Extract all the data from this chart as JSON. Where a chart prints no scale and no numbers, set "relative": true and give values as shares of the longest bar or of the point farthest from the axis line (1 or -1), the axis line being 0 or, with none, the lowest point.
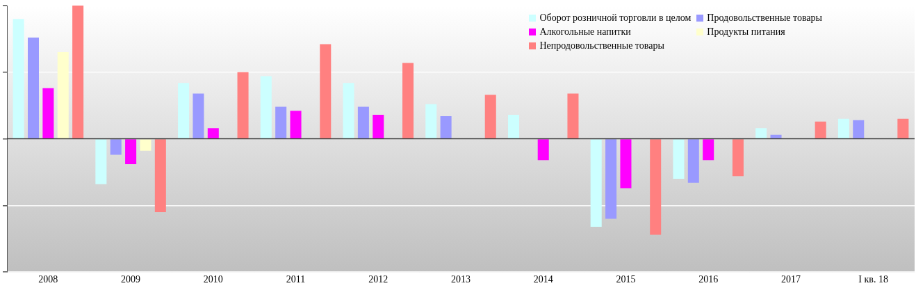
{
  "chart_data": {
    "type": "bar",
    "relative": true,
    "grid": "y",
    "legend": "top right",
    "categories": [
      "2008",
      "2009",
      "2010",
      "2011",
      "2012",
      "2013",
      "2014",
      "2015",
      "2016",
      "2017",
      "I кв. 18"
    ],
    "series": [
      {
        "name": "Оборот розничной торговли в целом",
        "color": "#ccffff",
        "values": [
          0.9,
          -0.34,
          0.42,
          0.47,
          0.42,
          0.26,
          0.18,
          -0.66,
          -0.3,
          0.08,
          0.15
        ]
      },
      {
        "name": "Продовольственные товары",
        "color": "#9999ff",
        "values": [
          0.76,
          -0.12,
          0.34,
          0.24,
          0.24,
          0.17,
          null,
          -0.6,
          -0.33,
          0.03,
          0.14
        ]
      },
      {
        "name": "Алкогольные напитки",
        "color": "#ff00ff",
        "values": [
          0.38,
          -0.19,
          0.08,
          0.21,
          0.18,
          null,
          -0.16,
          -0.37,
          -0.16,
          null,
          null
        ]
      },
      {
        "name": "Продукты питания",
        "color": "#ffffcc",
        "values": [
          0.65,
          -0.09,
          null,
          null,
          null,
          null,
          null,
          null,
          null,
          null,
          null
        ]
      },
      {
        "name": "Непродовольственные товары",
        "color": "#ff8080",
        "values": [
          1,
          -0.55,
          0.5,
          0.71,
          0.57,
          0.33,
          0.34,
          -0.72,
          -0.28,
          0.13,
          0.15
        ]
      }
    ]
  }
}
